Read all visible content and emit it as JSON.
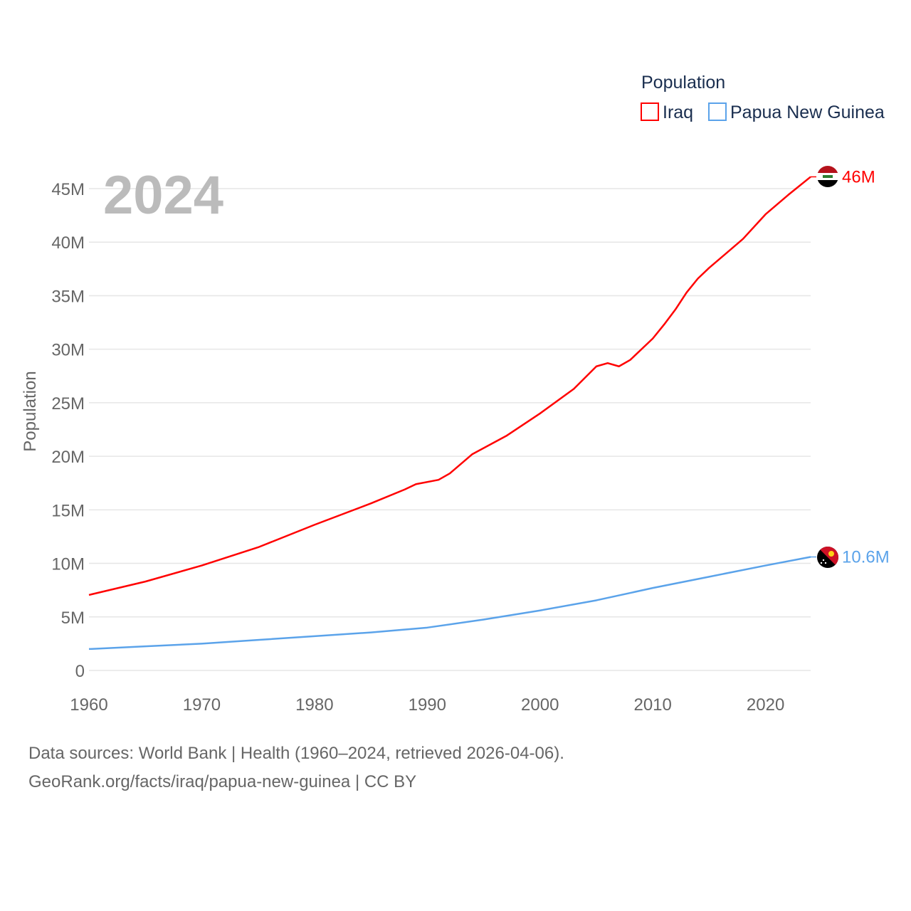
{
  "chart_data": {
    "type": "line",
    "ylabel": "Population",
    "year_label": "2024",
    "legend": {
      "title": "Population",
      "position": "top-right"
    },
    "xlim": [
      1960,
      2024
    ],
    "ylim": [
      0,
      45000000
    ],
    "x_ticks": [
      1960,
      1970,
      1980,
      1990,
      2000,
      2010,
      2020
    ],
    "x_tick_labels": [
      "1960",
      "1970",
      "1980",
      "1990",
      "2000",
      "2010",
      "2020"
    ],
    "y_ticks": [
      0,
      5000000,
      10000000,
      15000000,
      20000000,
      25000000,
      30000000,
      35000000,
      40000000,
      45000000
    ],
    "y_tick_labels": [
      "0",
      "5M",
      "10M",
      "15M",
      "20M",
      "25M",
      "30M",
      "35M",
      "40M",
      "45M"
    ],
    "grid": true,
    "series": [
      {
        "name": "Iraq",
        "color": "#ff0000",
        "end_label": "46M",
        "flag": "iraq-flag",
        "points": [
          [
            1960,
            7.05
          ],
          [
            1965,
            8.3
          ],
          [
            1970,
            9.8
          ],
          [
            1975,
            11.5
          ],
          [
            1980,
            13.6
          ],
          [
            1985,
            15.6
          ],
          [
            1988,
            16.9
          ],
          [
            1989,
            17.4
          ],
          [
            1991,
            17.8
          ],
          [
            1992,
            18.4
          ],
          [
            1994,
            20.2
          ],
          [
            1997,
            21.9
          ],
          [
            2000,
            24.0
          ],
          [
            2003,
            26.3
          ],
          [
            2005,
            28.4
          ],
          [
            2006,
            28.7
          ],
          [
            2007,
            28.4
          ],
          [
            2008,
            29.0
          ],
          [
            2010,
            31.0
          ],
          [
            2011,
            32.3
          ],
          [
            2012,
            33.7
          ],
          [
            2013,
            35.3
          ],
          [
            2014,
            36.6
          ],
          [
            2015,
            37.6
          ],
          [
            2018,
            40.3
          ],
          [
            2020,
            42.6
          ],
          [
            2022,
            44.4
          ],
          [
            2024,
            46.1
          ]
        ]
      },
      {
        "name": "Papua New Guinea",
        "color": "#5ba3ea",
        "end_label": "10.6M",
        "flag": "papua-new-guinea-flag",
        "points": [
          [
            1960,
            2.0
          ],
          [
            1965,
            2.25
          ],
          [
            1970,
            2.5
          ],
          [
            1975,
            2.85
          ],
          [
            1980,
            3.2
          ],
          [
            1985,
            3.55
          ],
          [
            1990,
            4.0
          ],
          [
            1995,
            4.75
          ],
          [
            2000,
            5.6
          ],
          [
            2005,
            6.55
          ],
          [
            2010,
            7.7
          ],
          [
            2015,
            8.75
          ],
          [
            2020,
            9.8
          ],
          [
            2024,
            10.6
          ]
        ]
      }
    ]
  },
  "footer": {
    "line1": "Data sources: World Bank | Health (1960–2024, retrieved 2026-04-06).",
    "line2": "GeoRank.org/facts/iraq/papua-new-guinea | CC BY"
  }
}
